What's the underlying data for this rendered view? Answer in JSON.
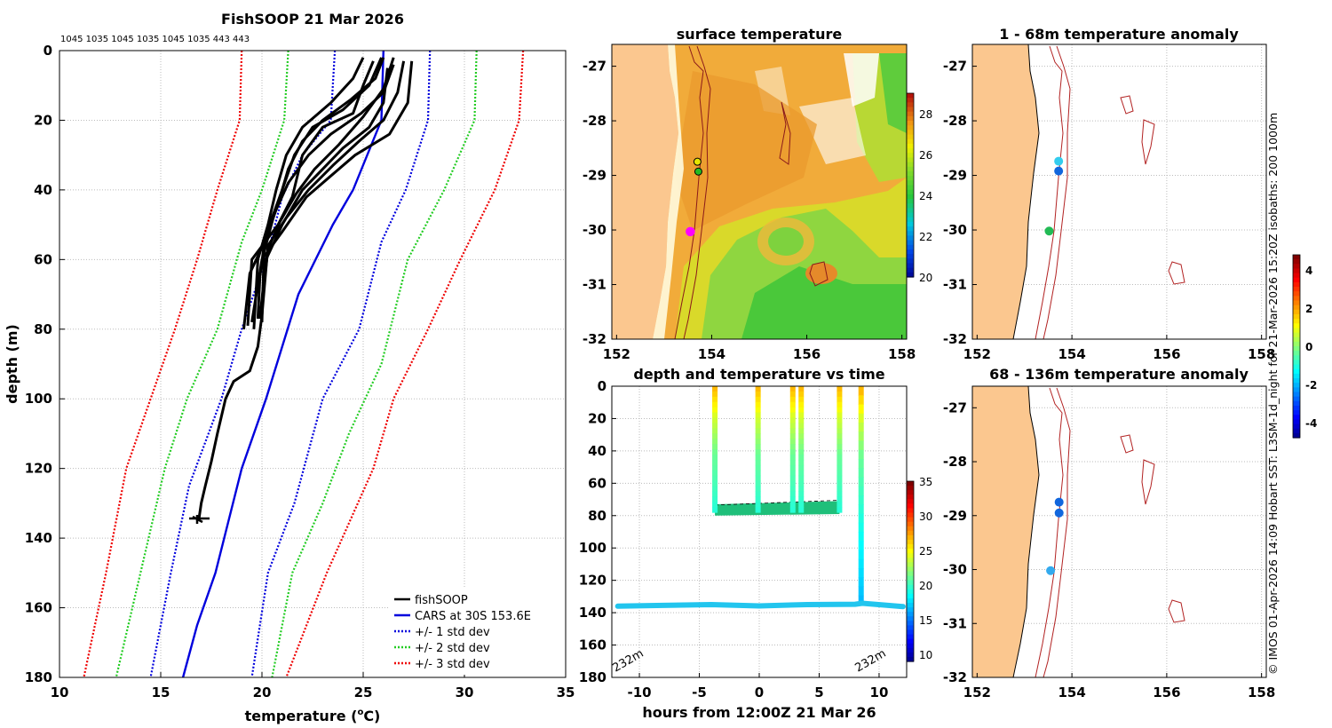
{
  "chart_data": [
    {
      "type": "line",
      "title": "FishSOOP 21 Mar 2026",
      "subtitle": "1045 1035 1045 1035 1045 1035 443 443",
      "xlabel": "temperature (",
      "xlabel_unit": "C)",
      "xlabel_sup": "o",
      "ylabel": "depth (m)",
      "xlim": [
        10,
        35
      ],
      "ylim": [
        0,
        180
      ],
      "xticks": [
        10,
        15,
        20,
        25,
        30,
        35
      ],
      "yticks": [
        0,
        20,
        40,
        60,
        80,
        100,
        120,
        140,
        160,
        180
      ],
      "legend": [
        {
          "label": "fishSOOP",
          "color": "#000000",
          "style": "solid"
        },
        {
          "label": "CARS at 30S 153.6E",
          "color": "#0000dd",
          "style": "solid"
        },
        {
          "label": "+/- 1 std dev",
          "color": "#0000dd",
          "style": "dotted"
        },
        {
          "label": "+/- 2 std dev",
          "color": "#22cc22",
          "style": "dotted"
        },
        {
          "label": "+/- 3 std dev",
          "color": "#ee0000",
          "style": "dotted"
        }
      ],
      "series": [
        {
          "name": "CARS mean",
          "color": "#0000dd",
          "dash": "",
          "points": [
            [
              26.0,
              0
            ],
            [
              25.9,
              20
            ],
            [
              24.5,
              40
            ],
            [
              23.5,
              50
            ],
            [
              21.8,
              70
            ],
            [
              20.2,
              100
            ],
            [
              19.0,
              120
            ],
            [
              17.7,
              150
            ],
            [
              16.8,
              165
            ],
            [
              16.1,
              180
            ]
          ]
        },
        {
          "name": "-1 std",
          "color": "#0000dd",
          "dash": "2,2",
          "points": [
            [
              23.6,
              0
            ],
            [
              23.4,
              20
            ],
            [
              22.0,
              30
            ],
            [
              21.0,
              42
            ],
            [
              20.3,
              58
            ],
            [
              19.0,
              80
            ],
            [
              18.0,
              100
            ],
            [
              16.4,
              125
            ],
            [
              15.5,
              150
            ],
            [
              14.5,
              180
            ]
          ]
        },
        {
          "name": "+1 std",
          "color": "#0000dd",
          "dash": "2,2",
          "points": [
            [
              28.3,
              0
            ],
            [
              28.2,
              20
            ],
            [
              27.1,
              40
            ],
            [
              25.9,
              55
            ],
            [
              24.8,
              80
            ],
            [
              23.0,
              100
            ],
            [
              21.6,
              130
            ],
            [
              20.3,
              150
            ],
            [
              19.5,
              180
            ]
          ]
        },
        {
          "name": "-2 std",
          "color": "#22cc22",
          "dash": "2,2",
          "points": [
            [
              21.3,
              0
            ],
            [
              21.1,
              20
            ],
            [
              20.0,
              40
            ],
            [
              19.0,
              55
            ],
            [
              17.8,
              80
            ],
            [
              16.3,
              100
            ],
            [
              15.2,
              120
            ],
            [
              14.0,
              150
            ],
            [
              12.8,
              180
            ]
          ]
        },
        {
          "name": "+2 std",
          "color": "#22cc22",
          "dash": "2,2",
          "points": [
            [
              30.6,
              0
            ],
            [
              30.5,
              20
            ],
            [
              29.0,
              40
            ],
            [
              27.2,
              60
            ],
            [
              25.9,
              90
            ],
            [
              24.3,
              110
            ],
            [
              23.0,
              130
            ],
            [
              21.5,
              150
            ],
            [
              20.5,
              180
            ]
          ]
        },
        {
          "name": "-3 std",
          "color": "#ee0000",
          "dash": "2,2",
          "points": [
            [
              19.0,
              0
            ],
            [
              18.9,
              20
            ],
            [
              17.8,
              40
            ],
            [
              16.8,
              60
            ],
            [
              15.7,
              80
            ],
            [
              14.5,
              100
            ],
            [
              13.3,
              120
            ],
            [
              12.3,
              150
            ],
            [
              11.2,
              180
            ]
          ]
        },
        {
          "name": "+3 std",
          "color": "#ee0000",
          "dash": "2,2",
          "points": [
            [
              32.9,
              0
            ],
            [
              32.7,
              20
            ],
            [
              31.5,
              40
            ],
            [
              29.8,
              60
            ],
            [
              28.2,
              80
            ],
            [
              26.5,
              100
            ],
            [
              25.5,
              120
            ],
            [
              23.2,
              150
            ],
            [
              21.2,
              180
            ]
          ]
        }
      ],
      "profiles": [
        [
          [
            25.9,
            2
          ],
          [
            25.3,
            10
          ],
          [
            24.0,
            17
          ],
          [
            22.5,
            22
          ],
          [
            21.6,
            30
          ],
          [
            21.0,
            40
          ],
          [
            20.5,
            48
          ],
          [
            20.1,
            56
          ],
          [
            19.9,
            65
          ],
          [
            19.8,
            77
          ]
        ],
        [
          [
            26.5,
            4
          ],
          [
            26.0,
            12
          ],
          [
            24.9,
            18
          ],
          [
            23.4,
            24
          ],
          [
            22.3,
            30
          ],
          [
            21.3,
            38
          ],
          [
            20.6,
            47
          ],
          [
            20.1,
            58
          ],
          [
            20.0,
            78
          ]
        ],
        [
          [
            27.0,
            3
          ],
          [
            26.7,
            12
          ],
          [
            26.0,
            20
          ],
          [
            24.8,
            26
          ],
          [
            23.5,
            33
          ],
          [
            22.3,
            40
          ],
          [
            21.2,
            48
          ],
          [
            20.3,
            56
          ],
          [
            20.0,
            76
          ]
        ],
        [
          [
            25.0,
            2
          ],
          [
            24.5,
            8
          ],
          [
            23.4,
            15
          ],
          [
            22.0,
            22
          ],
          [
            21.2,
            30
          ],
          [
            20.7,
            40
          ],
          [
            20.3,
            50
          ],
          [
            19.8,
            60
          ],
          [
            19.6,
            80
          ]
        ],
        [
          [
            26.2,
            5
          ],
          [
            26.0,
            15
          ],
          [
            25.3,
            22
          ],
          [
            24.0,
            28
          ],
          [
            23.0,
            34
          ],
          [
            22.0,
            40
          ],
          [
            21.0,
            50
          ],
          [
            20.2,
            60
          ],
          [
            19.9,
            77
          ]
        ],
        [
          [
            25.5,
            3
          ],
          [
            25.0,
            10
          ],
          [
            24.5,
            18
          ],
          [
            23.0,
            22
          ],
          [
            22.0,
            30
          ],
          [
            21.5,
            42
          ],
          [
            20.8,
            50
          ],
          [
            19.5,
            60
          ],
          [
            19.3,
            79
          ]
        ],
        [
          [
            27.4,
            3
          ],
          [
            27.2,
            15
          ],
          [
            26.3,
            24
          ],
          [
            24.6,
            30
          ],
          [
            23.4,
            36
          ],
          [
            22.2,
            42
          ],
          [
            21.0,
            52
          ],
          [
            20.0,
            60
          ],
          [
            19.5,
            78
          ]
        ],
        [
          [
            26.0,
            2
          ],
          [
            25.6,
            8
          ],
          [
            24.4,
            14
          ],
          [
            23.0,
            20
          ],
          [
            22.0,
            26
          ],
          [
            21.3,
            34
          ],
          [
            20.8,
            44
          ],
          [
            20.2,
            54
          ],
          [
            19.4,
            64
          ],
          [
            19.1,
            80
          ]
        ],
        [
          [
            26.5,
            2
          ],
          [
            26.0,
            11
          ],
          [
            25.0,
            19
          ],
          [
            23.8,
            27
          ],
          [
            22.6,
            34
          ],
          [
            21.7,
            41
          ],
          [
            20.9,
            49
          ],
          [
            20.3,
            57
          ],
          [
            19.9,
            77
          ]
        ],
        [
          [
            20.0,
            76
          ],
          [
            19.8,
            85
          ],
          [
            19.4,
            92
          ],
          [
            18.6,
            95
          ],
          [
            18.2,
            100
          ],
          [
            17.8,
            110
          ],
          [
            17.5,
            118
          ],
          [
            17.2,
            125
          ],
          [
            17.0,
            130
          ],
          [
            16.9,
            134
          ],
          [
            16.8,
            135
          ]
        ]
      ],
      "legend_position": "bottom-right"
    },
    {
      "type": "heatmap",
      "title": "surface temperature",
      "xticks": [
        152,
        154,
        156,
        158
      ],
      "yticks": [
        -27,
        -28,
        -29,
        -30,
        -31,
        -32
      ],
      "xlim": [
        151.9,
        158.1
      ],
      "ylim": [
        -32,
        -26.6
      ],
      "colorbar_ticks": [
        20,
        22,
        24,
        26,
        28
      ],
      "colorbar_range": [
        20,
        29
      ],
      "markers": [
        {
          "lon": 153.7,
          "lat": -28.75,
          "color": "#e6e600"
        },
        {
          "lon": 153.72,
          "lat": -28.93,
          "color": "#22bb22"
        },
        {
          "lon": 153.55,
          "lat": -30.03,
          "color": "#ff00ff"
        }
      ]
    },
    {
      "type": "scatter",
      "title": "depth and temperature vs time",
      "xlabel": "hours from 12:00Z 21 Mar 26",
      "xticks": [
        -10,
        -5,
        0,
        5,
        10
      ],
      "yticks": [
        0,
        20,
        40,
        60,
        80,
        100,
        120,
        140,
        160,
        180
      ],
      "xlim": [
        -12.3,
        12.3
      ],
      "ylim": [
        0,
        180
      ],
      "colorbar_ticks": [
        10,
        15,
        20,
        25,
        30,
        35
      ],
      "colorbar_range": [
        9,
        35
      ],
      "annotations": [
        "232m",
        "232m"
      ],
      "bottom_depth": 135,
      "casts": [
        -3.7,
        -0.1,
        2.8,
        3.5,
        6.7,
        8.5
      ],
      "bottom_line": [
        [
          -11.8,
          136
        ],
        [
          -8,
          135.5
        ],
        [
          -4,
          135
        ],
        [
          0,
          135.8
        ],
        [
          4,
          135
        ],
        [
          8,
          134.8
        ],
        [
          8.6,
          134.2
        ],
        [
          12,
          136.2
        ]
      ]
    },
    {
      "type": "scatter",
      "title": "1 - 68m temperature anomaly",
      "xticks": [
        152,
        154,
        156,
        158
      ],
      "yticks": [
        -27,
        -28,
        -29,
        -30,
        -31,
        -32
      ],
      "xlim": [
        151.9,
        158.1
      ],
      "ylim": [
        -32,
        -26.6
      ],
      "points": [
        {
          "lon": 153.72,
          "lat": -28.74,
          "color": "#33ccee"
        },
        {
          "lon": 153.72,
          "lat": -28.92,
          "color": "#1166dd"
        },
        {
          "lon": 153.52,
          "lat": -30.02,
          "color": "#22bb55"
        }
      ]
    },
    {
      "type": "scatter",
      "title": "68 - 136m temperature anomaly",
      "xticks": [
        152,
        154,
        156,
        158
      ],
      "yticks": [
        -27,
        -28,
        -29,
        -30,
        -31,
        -32
      ],
      "xlim": [
        151.9,
        158.1
      ],
      "ylim": [
        -32,
        -26.6
      ],
      "points": [
        {
          "lon": 153.73,
          "lat": -28.75,
          "color": "#1166dd"
        },
        {
          "lon": 153.73,
          "lat": -28.95,
          "color": "#1166dd"
        },
        {
          "lon": 153.55,
          "lat": -30.02,
          "color": "#33aaee"
        }
      ]
    },
    {
      "type": "heatmap",
      "title": "anomaly colorbar",
      "colorbar_ticks": [
        4,
        2,
        0,
        -2,
        -4
      ],
      "colorbar_range": [
        -4.8,
        4.8
      ]
    }
  ],
  "side_credit": "© IMOS 01-Apr-2026 14:09 Hobart SST: L3SM-1d_night for 21-Mar-2026 15:20Z isobaths: 200  1000m"
}
